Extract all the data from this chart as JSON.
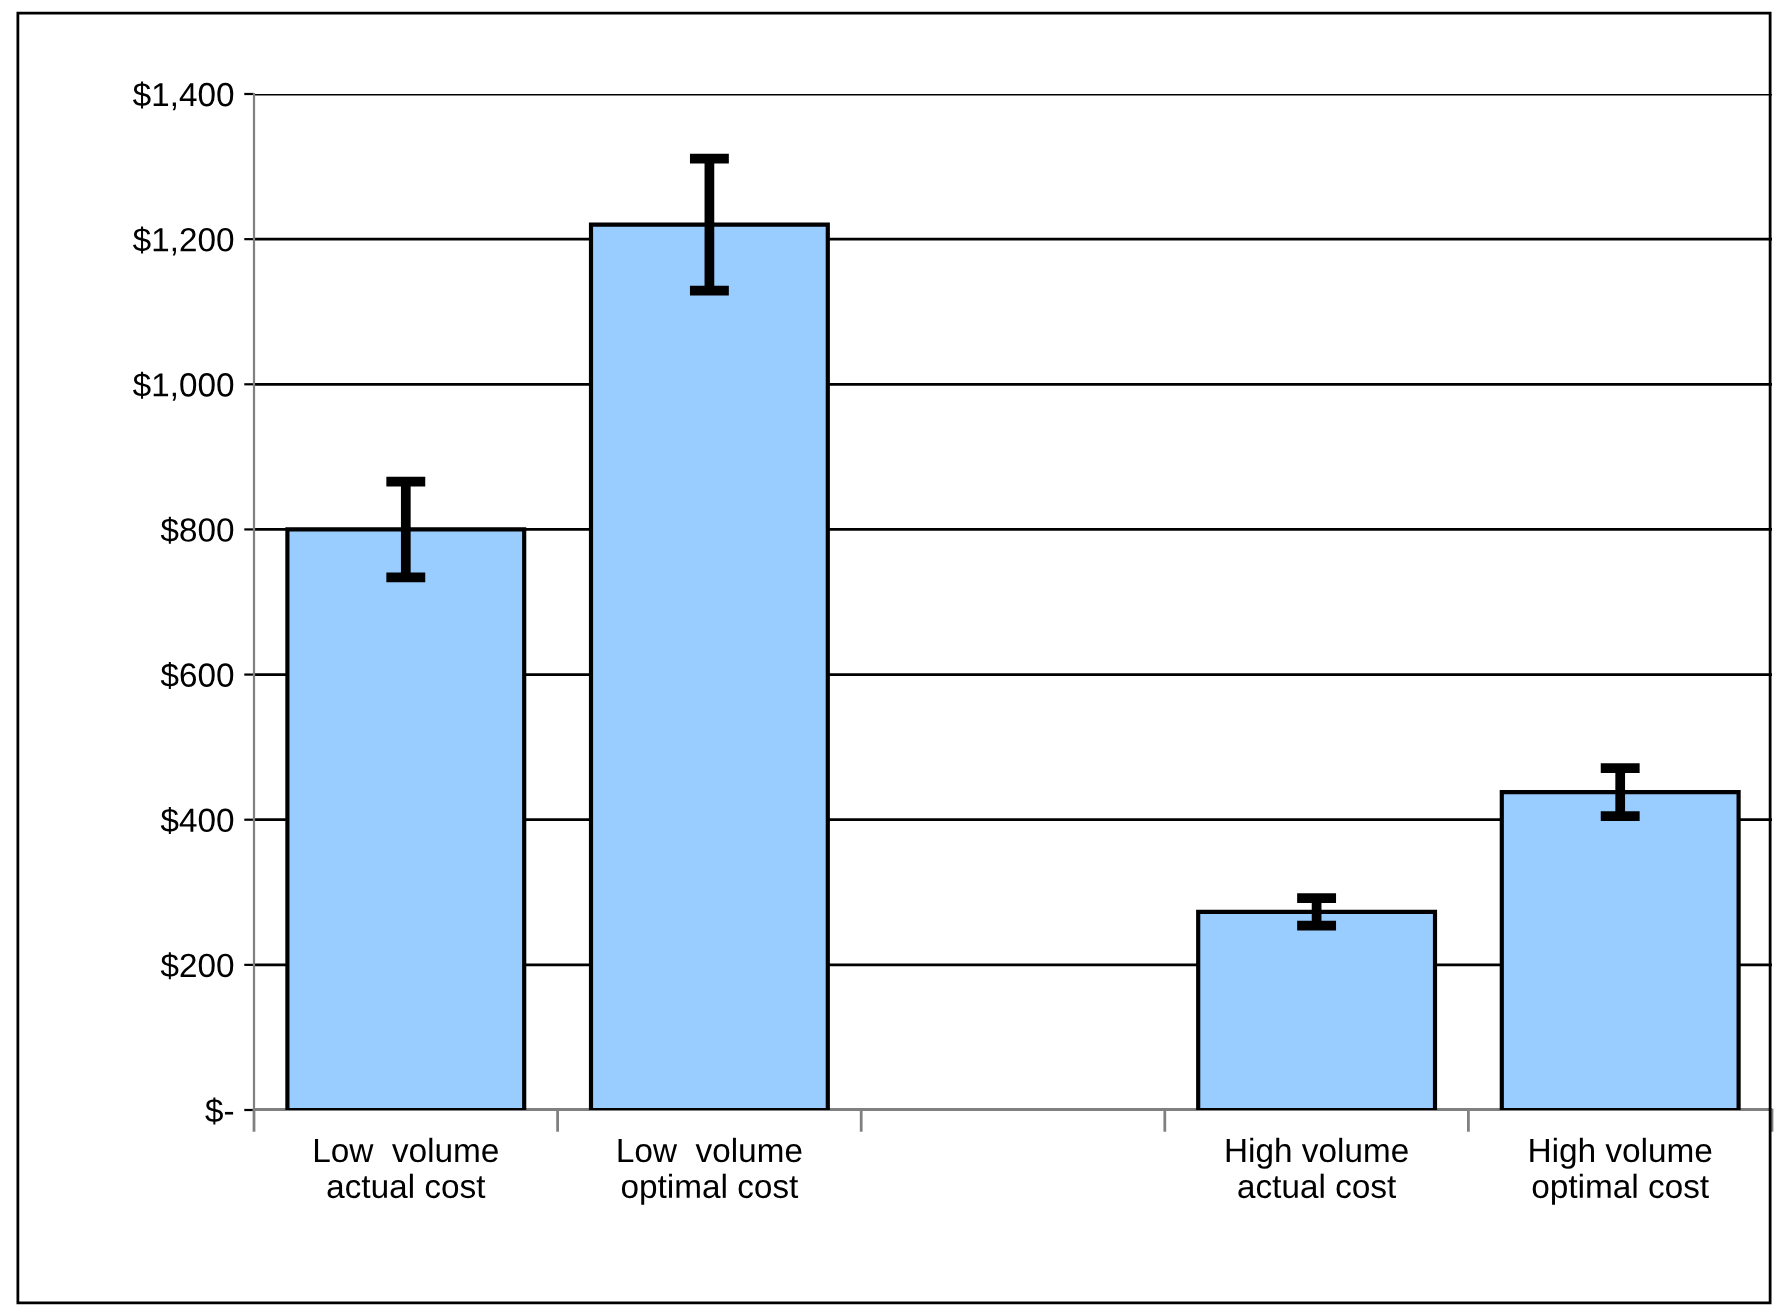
{
  "chart_data": {
    "type": "bar",
    "categories": [
      "Low  volume\nactual cost",
      "Low  volume\noptimal cost",
      null,
      "High volume\nactual cost",
      "High volume\noptimal cost"
    ],
    "values": [
      800,
      1220,
      null,
      273,
      438
    ],
    "errors": [
      66,
      91,
      null,
      19,
      33
    ],
    "color": "#99ccff",
    "ylim": [
      0,
      1400
    ],
    "yticks": [
      {
        "value": 0,
        "label": "$-"
      },
      {
        "value": 200,
        "label": "$200"
      },
      {
        "value": 400,
        "label": "$400"
      },
      {
        "value": 600,
        "label": "$600"
      },
      {
        "value": 800,
        "label": "$800"
      },
      {
        "value": 1000,
        "label": "$1,000"
      },
      {
        "value": 1200,
        "label": "$1,200"
      },
      {
        "value": 1400,
        "label": "$1,400"
      }
    ],
    "grid": "y",
    "legend": false
  }
}
